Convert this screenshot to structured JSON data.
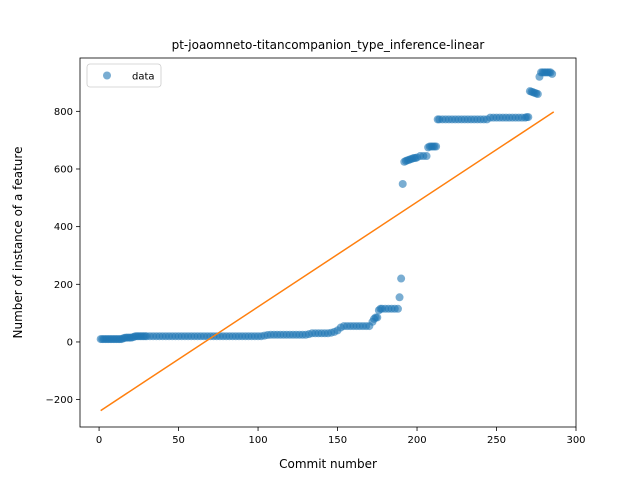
{
  "chart_data": {
    "type": "scatter",
    "title": "pt-joaomneto-titancompanion_type_inference-linear",
    "xlabel": "Commit number",
    "ylabel": "Number of instance of a feature",
    "xlim": [
      -12,
      300
    ],
    "ylim": [
      -295,
      985
    ],
    "xticks": [
      0,
      50,
      100,
      150,
      200,
      250,
      300
    ],
    "yticks": [
      -200,
      0,
      200,
      400,
      600,
      800
    ],
    "ytick_labels": [
      "−200",
      "0",
      "200",
      "400",
      "600",
      "800"
    ],
    "grid": false,
    "legend": {
      "placement": "top-left",
      "entries": [
        "data"
      ]
    },
    "colors": {
      "data": "#1f77b4",
      "fit": "#ff7f0e"
    },
    "series": [
      {
        "name": "data",
        "kind": "scatter",
        "points": [
          [
            1,
            10
          ],
          [
            2,
            10
          ],
          [
            3,
            10
          ],
          [
            4,
            10
          ],
          [
            5,
            10
          ],
          [
            6,
            10
          ],
          [
            7,
            10
          ],
          [
            8,
            10
          ],
          [
            9,
            10
          ],
          [
            10,
            10
          ],
          [
            11,
            10
          ],
          [
            12,
            10
          ],
          [
            13,
            10
          ],
          [
            14,
            10
          ],
          [
            15,
            12
          ],
          [
            16,
            14
          ],
          [
            17,
            15
          ],
          [
            18,
            15
          ],
          [
            19,
            15
          ],
          [
            20,
            15
          ],
          [
            21,
            16
          ],
          [
            22,
            18
          ],
          [
            23,
            20
          ],
          [
            24,
            20
          ],
          [
            25,
            20
          ],
          [
            26,
            20
          ],
          [
            27,
            20
          ],
          [
            28,
            20
          ],
          [
            29,
            20
          ],
          [
            30,
            20
          ],
          [
            32,
            20
          ],
          [
            34,
            20
          ],
          [
            36,
            20
          ],
          [
            38,
            20
          ],
          [
            40,
            20
          ],
          [
            42,
            20
          ],
          [
            44,
            20
          ],
          [
            46,
            20
          ],
          [
            48,
            20
          ],
          [
            50,
            20
          ],
          [
            52,
            20
          ],
          [
            54,
            20
          ],
          [
            56,
            20
          ],
          [
            58,
            20
          ],
          [
            60,
            20
          ],
          [
            62,
            20
          ],
          [
            64,
            20
          ],
          [
            66,
            20
          ],
          [
            68,
            20
          ],
          [
            70,
            20
          ],
          [
            72,
            20
          ],
          [
            74,
            20
          ],
          [
            76,
            20
          ],
          [
            78,
            20
          ],
          [
            80,
            20
          ],
          [
            82,
            20
          ],
          [
            84,
            20
          ],
          [
            86,
            20
          ],
          [
            88,
            20
          ],
          [
            90,
            20
          ],
          [
            92,
            20
          ],
          [
            94,
            20
          ],
          [
            96,
            20
          ],
          [
            98,
            20
          ],
          [
            100,
            20
          ],
          [
            102,
            20
          ],
          [
            104,
            22
          ],
          [
            106,
            24
          ],
          [
            108,
            25
          ],
          [
            110,
            25
          ],
          [
            112,
            25
          ],
          [
            114,
            25
          ],
          [
            116,
            25
          ],
          [
            118,
            25
          ],
          [
            120,
            25
          ],
          [
            122,
            25
          ],
          [
            124,
            25
          ],
          [
            126,
            25
          ],
          [
            128,
            25
          ],
          [
            130,
            25
          ],
          [
            132,
            27
          ],
          [
            134,
            30
          ],
          [
            136,
            30
          ],
          [
            138,
            30
          ],
          [
            140,
            30
          ],
          [
            142,
            30
          ],
          [
            144,
            30
          ],
          [
            146,
            32
          ],
          [
            148,
            35
          ],
          [
            150,
            40
          ],
          [
            152,
            50
          ],
          [
            154,
            55
          ],
          [
            156,
            55
          ],
          [
            158,
            55
          ],
          [
            160,
            55
          ],
          [
            162,
            55
          ],
          [
            164,
            55
          ],
          [
            166,
            55
          ],
          [
            168,
            55
          ],
          [
            170,
            55
          ],
          [
            172,
            70
          ],
          [
            173,
            80
          ],
          [
            174,
            85
          ],
          [
            175,
            85
          ],
          [
            176,
            110
          ],
          [
            177,
            115
          ],
          [
            178,
            115
          ],
          [
            180,
            115
          ],
          [
            182,
            115
          ],
          [
            184,
            115
          ],
          [
            186,
            115
          ],
          [
            188,
            115
          ],
          [
            189,
            155
          ],
          [
            190,
            220
          ],
          [
            191,
            548
          ],
          [
            192,
            625
          ],
          [
            193,
            628
          ],
          [
            194,
            630
          ],
          [
            195,
            632
          ],
          [
            196,
            634
          ],
          [
            197,
            636
          ],
          [
            198,
            638
          ],
          [
            199,
            638
          ],
          [
            200,
            640
          ],
          [
            202,
            645
          ],
          [
            204,
            645
          ],
          [
            206,
            645
          ],
          [
            207,
            675
          ],
          [
            208,
            678
          ],
          [
            209,
            678
          ],
          [
            210,
            678
          ],
          [
            211,
            678
          ],
          [
            212,
            678
          ],
          [
            213,
            772
          ],
          [
            214,
            772
          ],
          [
            216,
            772
          ],
          [
            218,
            772
          ],
          [
            220,
            772
          ],
          [
            222,
            772
          ],
          [
            224,
            772
          ],
          [
            226,
            772
          ],
          [
            228,
            772
          ],
          [
            230,
            772
          ],
          [
            232,
            772
          ],
          [
            234,
            772
          ],
          [
            236,
            772
          ],
          [
            238,
            772
          ],
          [
            240,
            772
          ],
          [
            242,
            772
          ],
          [
            244,
            772
          ],
          [
            246,
            778
          ],
          [
            248,
            778
          ],
          [
            250,
            778
          ],
          [
            252,
            778
          ],
          [
            254,
            778
          ],
          [
            256,
            778
          ],
          [
            258,
            778
          ],
          [
            260,
            778
          ],
          [
            262,
            778
          ],
          [
            264,
            778
          ],
          [
            266,
            778
          ],
          [
            268,
            778
          ],
          [
            269,
            780
          ],
          [
            270,
            780
          ],
          [
            271,
            870
          ],
          [
            272,
            868
          ],
          [
            273,
            866
          ],
          [
            274,
            864
          ],
          [
            275,
            862
          ],
          [
            276,
            860
          ],
          [
            277,
            920
          ],
          [
            278,
            935
          ],
          [
            279,
            935
          ],
          [
            280,
            935
          ],
          [
            281,
            935
          ],
          [
            282,
            935
          ],
          [
            283,
            935
          ],
          [
            284,
            935
          ],
          [
            285,
            930
          ]
        ]
      },
      {
        "kind": "line",
        "points": [
          [
            1,
            -238
          ],
          [
            286,
            798
          ]
        ]
      }
    ]
  }
}
